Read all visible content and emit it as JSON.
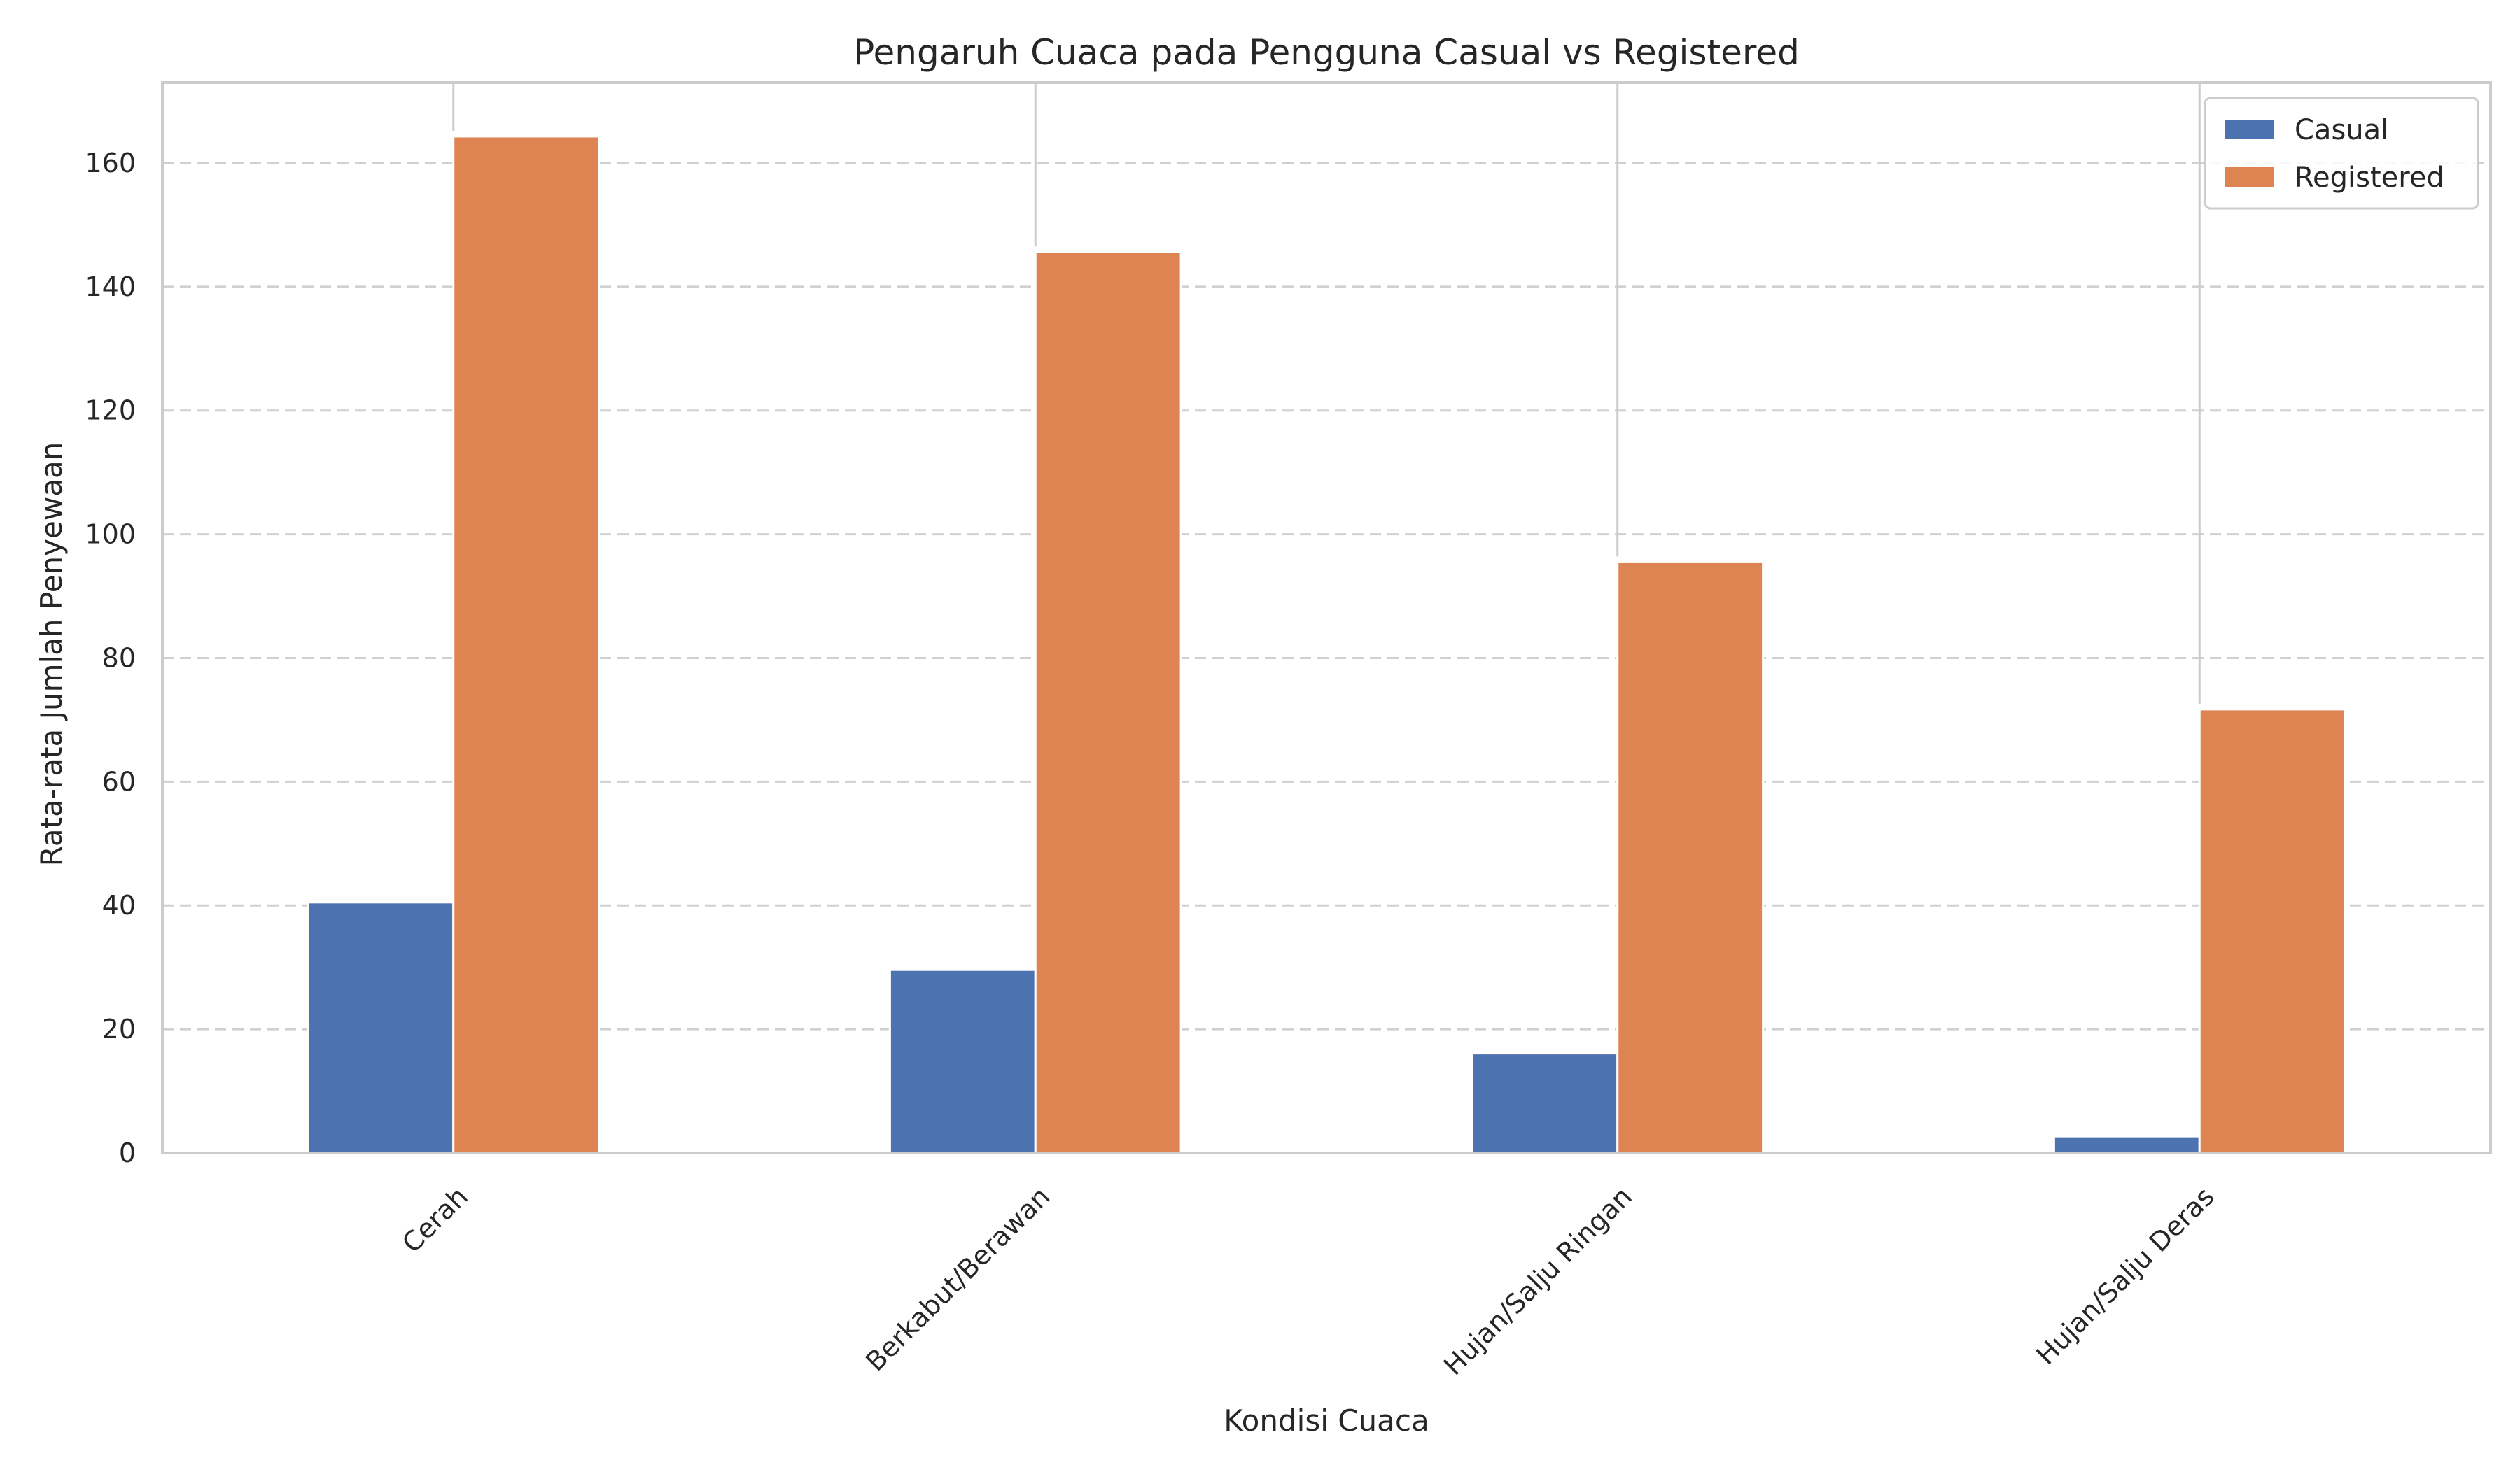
{
  "chart_data": {
    "type": "bar",
    "title": "Pengaruh Cuaca pada Pengguna Casual vs Registered",
    "xlabel": "Kondisi Cuaca",
    "ylabel": "Rata-rata Jumlah Penyewaan",
    "categories": [
      "Cerah",
      "Berkabut/Berawan",
      "Hujan/Salju Ringan",
      "Hujan/Salju Deras"
    ],
    "series": [
      {
        "name": "Casual",
        "values": [
          40.5,
          29.6,
          16.1,
          2.7
        ],
        "color": "#4c72b0"
      },
      {
        "name": "Registered",
        "values": [
          164.3,
          145.6,
          95.5,
          71.7
        ],
        "color": "#dd8452"
      }
    ],
    "ylim": [
      0,
      173
    ],
    "yticks": [
      0,
      20,
      40,
      60,
      80,
      100,
      120,
      140,
      160
    ],
    "grid": {
      "y": true,
      "style": "dashed"
    },
    "legend_position": "top-right"
  }
}
